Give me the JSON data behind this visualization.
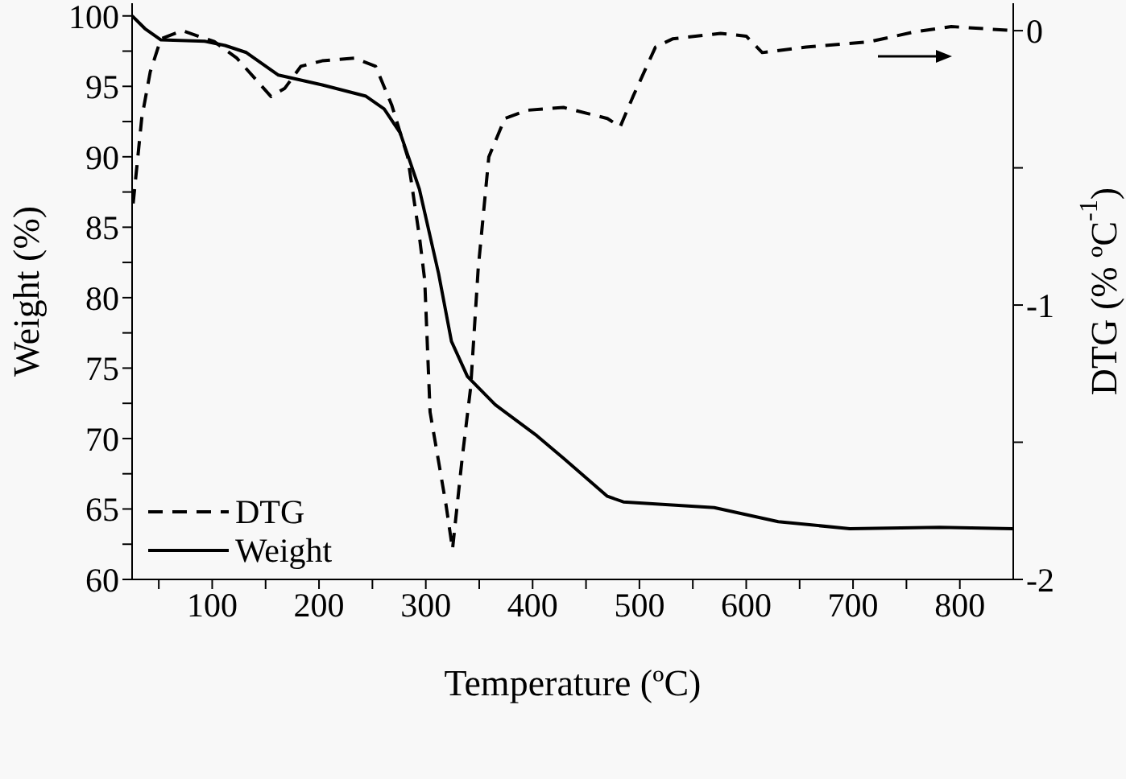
{
  "chart_data": {
    "type": "line",
    "xlabel": "Temperature (ºC)",
    "ylabel": "Weight (%)",
    "y2label": "DTG (% ºC$^{-1}$)",
    "xlim": [
      25,
      850
    ],
    "xticks": [
      {
        "value": 50,
        "label": null
      },
      100,
      {
        "value": 150,
        "label": null
      },
      200,
      {
        "value": 250,
        "label": null
      },
      300,
      {
        "value": 350,
        "label": null
      },
      400,
      {
        "value": 450,
        "label": null
      },
      500,
      {
        "value": 550,
        "label": null
      },
      600,
      {
        "value": 650,
        "label": null
      },
      700,
      {
        "value": 750,
        "label": null
      },
      800
    ],
    "ylim": [
      60,
      100.9
    ],
    "yticks": [
      60,
      {
        "value": 62.5,
        "label": null
      },
      65,
      {
        "value": 67.5,
        "label": null
      },
      70,
      {
        "value": 72.5,
        "label": null
      },
      75,
      {
        "value": 77.5,
        "label": null
      },
      80,
      {
        "value": 82.5,
        "label": null
      },
      85,
      {
        "value": 87.5,
        "label": null
      },
      90,
      {
        "value": 92.5,
        "label": null
      },
      95,
      {
        "value": 97.5,
        "label": null
      },
      100
    ],
    "y2lim": [
      -2,
      0.1
    ],
    "y2ticks": [
      -2,
      {
        "value": -1.5,
        "label": null
      },
      -1,
      {
        "value": -0.5,
        "label": null
      },
      0
    ],
    "legend": "bottom left",
    "marker": "none",
    "series": [
      {
        "name": "DTG",
        "color": "#000000",
        "line_style": "dashed",
        "axis": "y2",
        "x": [
          26,
          34,
          42,
          52,
          72,
          102,
          123,
          155,
          168,
          183,
          203,
          233,
          253,
          268,
          283,
          294,
          299,
          304,
          319,
          325,
          334,
          342,
          349,
          359,
          374,
          395,
          429,
          470,
          482,
          494,
          515,
          531,
          576,
          600,
          615,
          656,
          716,
          757,
          792,
          850
        ],
        "values": [
          -0.63,
          -0.32,
          -0.15,
          -0.03,
          0,
          -0.04,
          -0.1,
          -0.24,
          -0.21,
          -0.13,
          -0.11,
          -0.1,
          -0.13,
          -0.27,
          -0.46,
          -0.75,
          -0.91,
          -1.39,
          -1.73,
          -1.89,
          -1.56,
          -1.3,
          -0.87,
          -0.46,
          -0.32,
          -0.29,
          -0.28,
          -0.32,
          -0.35,
          -0.24,
          -0.06,
          -0.03,
          -0.01,
          -0.02,
          -0.08,
          -0.06,
          -0.04,
          -0.005,
          0.015,
          0
        ]
      },
      {
        "name": "Weight",
        "color": "#000000",
        "line_style": "solid",
        "x": [
          25,
          37,
          52,
          93,
          112,
          132,
          162,
          203,
          244,
          261,
          276,
          294,
          312,
          324,
          339,
          365,
          404,
          429,
          470,
          485,
          570,
          630,
          697,
          781,
          850
        ],
        "values": [
          100,
          99.1,
          98.3,
          98.2,
          97.9,
          97.4,
          95.8,
          95.1,
          94.3,
          93.4,
          91.7,
          87.7,
          81.7,
          76.9,
          74.4,
          72.4,
          70.2,
          68.6,
          65.9,
          65.5,
          65.1,
          64.1,
          63.6,
          63.7,
          63.6
        ]
      }
    ]
  }
}
